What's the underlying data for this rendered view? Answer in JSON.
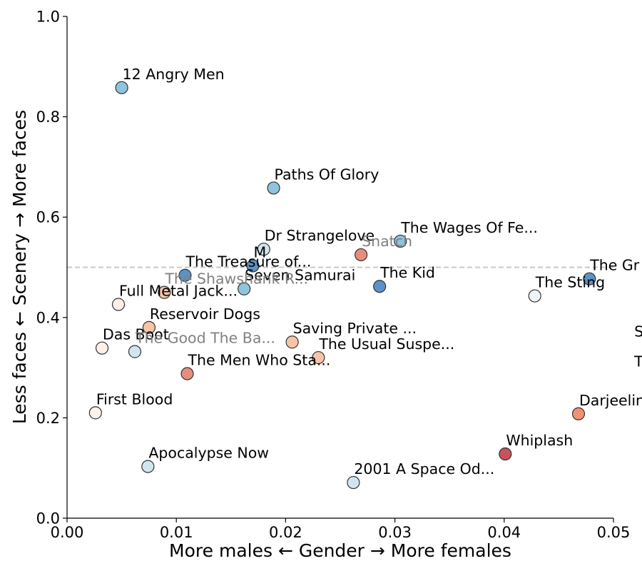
{
  "chart_data": {
    "type": "scatter",
    "title": "",
    "xlabel": "More males ← Gender → More females",
    "ylabel": "Less faces ← Scenery → More faces",
    "xlim": [
      0.0,
      0.05
    ],
    "ylim": [
      0.0,
      1.0
    ],
    "x_ticks": [
      "0.00",
      "0.01",
      "0.02",
      "0.03",
      "0.04",
      "0.05"
    ],
    "y_ticks": [
      "0.0",
      "0.2",
      "0.4",
      "0.6",
      "0.8",
      "1.0"
    ],
    "reference_line": {
      "y": 0.5,
      "style": "dashed",
      "color": "#c8c8c8"
    },
    "grid": false,
    "legend": "none",
    "points": [
      {
        "label": "12 Angry Men",
        "x": 0.005,
        "y": 0.858,
        "color": "#8ec4de"
      },
      {
        "label": "Paths Of Glory",
        "x": 0.0189,
        "y": 0.658,
        "color": "#8ec4de"
      },
      {
        "label": "The Wages Of Fe...",
        "x": 0.0305,
        "y": 0.552,
        "color": "#8ec4de"
      },
      {
        "label": "Dr Strangelove",
        "x": 0.018,
        "y": 0.536,
        "color": "#d1e5f0"
      },
      {
        "label": "Snatch",
        "x": 0.0269,
        "y": 0.525,
        "color": "#e58e7c",
        "faded": true
      },
      {
        "label": "M",
        "x": 0.017,
        "y": 0.503,
        "color": "#5b92c8"
      },
      {
        "label": "The Treasure of...",
        "x": 0.0108,
        "y": 0.484,
        "color": "#5b92c8"
      },
      {
        "label": "The Gr",
        "x": 0.0478,
        "y": 0.477,
        "color": "#5b92c8"
      },
      {
        "label": "The Kid",
        "x": 0.0286,
        "y": 0.462,
        "color": "#5b92c8"
      },
      {
        "label": "Seven Samurai",
        "x": 0.0162,
        "y": 0.457,
        "color": "#8ec4de"
      },
      {
        "label": "The Shawshank R...",
        "x": 0.0089,
        "y": 0.45,
        "color": "#f8c4a8",
        "faded": true
      },
      {
        "label": "The Sting",
        "x": 0.0428,
        "y": 0.443,
        "color": "#eef4f8"
      },
      {
        "label": "Full Metal Jack...",
        "x": 0.0047,
        "y": 0.426,
        "color": "#fdf1ea"
      },
      {
        "label": "Reservoir Dogs",
        "x": 0.0075,
        "y": 0.38,
        "color": "#f8c4a8"
      },
      {
        "label": "Saving Private ...",
        "x": 0.0206,
        "y": 0.351,
        "color": "#f8c4a8"
      },
      {
        "label": "Das Boot",
        "x": 0.0032,
        "y": 0.339,
        "color": "#fdf1ea"
      },
      {
        "label": "The Good The Ba...",
        "x": 0.0062,
        "y": 0.332,
        "color": "#d1e5f0",
        "faded": true
      },
      {
        "label": "The Usual Suspe...",
        "x": 0.023,
        "y": 0.32,
        "color": "#f8c4a8"
      },
      {
        "label": "The Men Who Sta...",
        "x": 0.011,
        "y": 0.288,
        "color": "#e58e7c"
      },
      {
        "label": "First Blood",
        "x": 0.0026,
        "y": 0.21,
        "color": "#fdf1ea"
      },
      {
        "label": "Darjeelin",
        "x": 0.0468,
        "y": 0.208,
        "color": "#ef9273"
      },
      {
        "label": "Whiplash",
        "x": 0.0401,
        "y": 0.128,
        "color": "#c9525b"
      },
      {
        "label": "Apocalypse Now",
        "x": 0.0074,
        "y": 0.103,
        "color": "#d1e5f0"
      },
      {
        "label": "2001 A Space Od...",
        "x": 0.0262,
        "y": 0.071,
        "color": "#d1e5f0"
      }
    ],
    "offscreen_labels": [
      {
        "label": "S",
        "x": 0.0519,
        "y": 0.362
      },
      {
        "label": "T",
        "x": 0.0519,
        "y": 0.302
      }
    ]
  }
}
